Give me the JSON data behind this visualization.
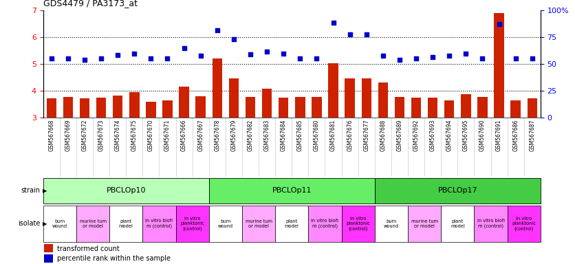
{
  "title": "GDS4479 / PA3173_at",
  "samples": [
    "GSM567668",
    "GSM567669",
    "GSM567672",
    "GSM567673",
    "GSM567674",
    "GSM567675",
    "GSM567670",
    "GSM567671",
    "GSM567666",
    "GSM567667",
    "GSM567678",
    "GSM567679",
    "GSM567682",
    "GSM567683",
    "GSM567684",
    "GSM567685",
    "GSM567680",
    "GSM567681",
    "GSM567676",
    "GSM567677",
    "GSM567688",
    "GSM567689",
    "GSM567692",
    "GSM567693",
    "GSM567694",
    "GSM567695",
    "GSM567690",
    "GSM567691",
    "GSM567686",
    "GSM567687"
  ],
  "bar_values": [
    3.72,
    3.78,
    3.72,
    3.75,
    3.82,
    3.95,
    3.58,
    3.65,
    4.15,
    3.8,
    5.2,
    4.47,
    3.78,
    4.07,
    3.75,
    3.78,
    3.78,
    5.03,
    4.47,
    4.47,
    4.32,
    3.78,
    3.75,
    3.75,
    3.65,
    3.88,
    3.78,
    6.9,
    3.65,
    3.72
  ],
  "dot_values": [
    5.22,
    5.22,
    5.15,
    5.22,
    5.35,
    5.4,
    5.22,
    5.22,
    5.6,
    5.32,
    6.27,
    5.92,
    5.37,
    5.47,
    5.4,
    5.22,
    5.22,
    6.55,
    6.1,
    6.1,
    5.3,
    5.15,
    5.22,
    5.25,
    5.3,
    5.4,
    5.22,
    6.5,
    5.22,
    5.22
  ],
  "strains": [
    {
      "label": "PBCLOp10",
      "start": 0,
      "end": 9
    },
    {
      "label": "PBCLOp11",
      "start": 10,
      "end": 19
    },
    {
      "label": "PBCLOp17",
      "start": 20,
      "end": 29
    }
  ],
  "strain_colors": {
    "PBCLOp10": "#b8ffb8",
    "PBCLOp11": "#66ee66",
    "PBCLOp17": "#44cc44"
  },
  "isolates": [
    {
      "label": "burn\nwound",
      "start": 0,
      "end": 1,
      "color": "#ffffff"
    },
    {
      "label": "murine tum\nor model",
      "start": 2,
      "end": 3,
      "color": "#ffaaff"
    },
    {
      "label": "plant\nmodel",
      "start": 4,
      "end": 5,
      "color": "#ffffff"
    },
    {
      "label": "in vitro biofi\nm (control)",
      "start": 6,
      "end": 7,
      "color": "#ff88ff"
    },
    {
      "label": "in vitro\nplanktonic\n(control)",
      "start": 8,
      "end": 9,
      "color": "#ff33ff"
    },
    {
      "label": "burn\nwound",
      "start": 10,
      "end": 11,
      "color": "#ffffff"
    },
    {
      "label": "murine tum\nor model",
      "start": 12,
      "end": 13,
      "color": "#ffaaff"
    },
    {
      "label": "plant\nmodel",
      "start": 14,
      "end": 15,
      "color": "#ffffff"
    },
    {
      "label": "in vitro biofi\nm (control)",
      "start": 16,
      "end": 17,
      "color": "#ff88ff"
    },
    {
      "label": "in vitro\nplanktonic\n(control)",
      "start": 18,
      "end": 19,
      "color": "#ff33ff"
    },
    {
      "label": "burn\nwound",
      "start": 20,
      "end": 21,
      "color": "#ffffff"
    },
    {
      "label": "murine tum\nor model",
      "start": 22,
      "end": 23,
      "color": "#ffaaff"
    },
    {
      "label": "plant\nmodel",
      "start": 24,
      "end": 25,
      "color": "#ffffff"
    },
    {
      "label": "in vitro biofi\nm (control)",
      "start": 26,
      "end": 27,
      "color": "#ff88ff"
    },
    {
      "label": "in vitro\nplanktonic\n(control)",
      "start": 28,
      "end": 29,
      "color": "#ff33ff"
    }
  ],
  "bar_color": "#cc2200",
  "dot_color": "#0000cc",
  "bar_bottom": 3.0,
  "ylim_left": [
    3.0,
    7.0
  ],
  "yticks_left": [
    3,
    4,
    5,
    6,
    7
  ],
  "yticks_right": [
    0,
    25,
    50,
    75,
    100
  ],
  "hlines": [
    4.0,
    5.0,
    6.0
  ],
  "plot_bg": "#ffffff",
  "label_bg": "#e8e8e8"
}
